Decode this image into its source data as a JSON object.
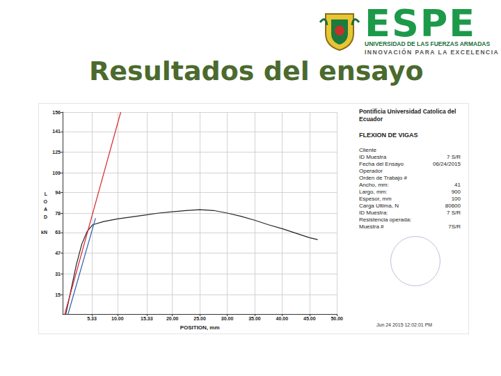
{
  "header": {
    "logo": "ESPE",
    "logo_subtitle": "UNIVERSIDAD DE LAS FUERZAS ARMADAS",
    "logo_motto": "INNOVACIÓN PARA LA EXCELENCIA",
    "title": "Resultados del ensayo"
  },
  "chart_data": {
    "type": "line",
    "xlabel": "POSITION, mm",
    "ylabel": "LOAD",
    "yunit": "kN",
    "series": [
      {
        "color": "#222222",
        "x": [
          0.6,
          1.5,
          2.5,
          3.5,
          4.5,
          5.5,
          7.5,
          10,
          12.5,
          15,
          17.5,
          20,
          22.5,
          25,
          27.5,
          30,
          32.5,
          35,
          37.5,
          40,
          42.5,
          45,
          46.5
        ],
        "values": [
          0,
          18,
          38,
          54,
          64,
          69,
          71.5,
          73.5,
          75,
          76.5,
          78,
          79,
          80,
          80.6,
          80,
          78,
          75.5,
          72.5,
          69,
          66,
          62.5,
          59,
          57.5
        ]
      },
      {
        "color": "#d9262e",
        "x": [
          0.4,
          10.6
        ],
        "values": [
          0,
          156
        ]
      },
      {
        "color": "#2a5fb0",
        "x": [
          1.0,
          6.0
        ],
        "values": [
          0,
          74
        ]
      }
    ],
    "xlim": [
      0,
      50
    ],
    "xticks": [
      {
        "value": 5.33,
        "label": "5.33"
      },
      {
        "value": 10,
        "label": "10.00"
      },
      {
        "value": 15.33,
        "label": "15.33"
      },
      {
        "value": 20,
        "label": "20.00"
      },
      {
        "value": 25,
        "label": "25.00"
      },
      {
        "value": 30,
        "label": "30.00"
      },
      {
        "value": 35,
        "label": "35.00"
      },
      {
        "value": 40,
        "label": "40.00"
      },
      {
        "value": 45,
        "label": "45.00"
      },
      {
        "value": 50,
        "label": "50.00"
      }
    ],
    "ylim": [
      0,
      156
    ],
    "yticks": [
      15,
      31,
      47,
      63,
      78,
      94,
      109,
      125,
      141,
      156
    ],
    "grid": true
  },
  "report": {
    "institution": "Pontificia Universidad Catolica del Ecuador",
    "test": "FLEXION DE VIGAS",
    "fields": [
      {
        "label": "Cliente"
      },
      {
        "label": "ID Muestra",
        "value": "7 S/R"
      },
      {
        "label": "Fecha del Ensayo",
        "value": "06/24/2015"
      },
      {
        "label": "Operador"
      },
      {
        "label": "Orden de Trabajo #"
      },
      {
        "label": "Ancho, mm:",
        "value": "41"
      },
      {
        "label": "Largo, mm:",
        "value": "900"
      },
      {
        "label": "Espesor, mm",
        "value": "100"
      },
      {
        "label": "Carga Ultima, N",
        "value": "80600"
      },
      {
        "label": "ID Muestra:",
        "value": "7 S/R"
      },
      {
        "label": "Resistencia operada:"
      },
      {
        "label": "Muestra #",
        "value": "7S/R"
      }
    ],
    "footer": "Jun 24 2015 12:02:01 PM"
  }
}
